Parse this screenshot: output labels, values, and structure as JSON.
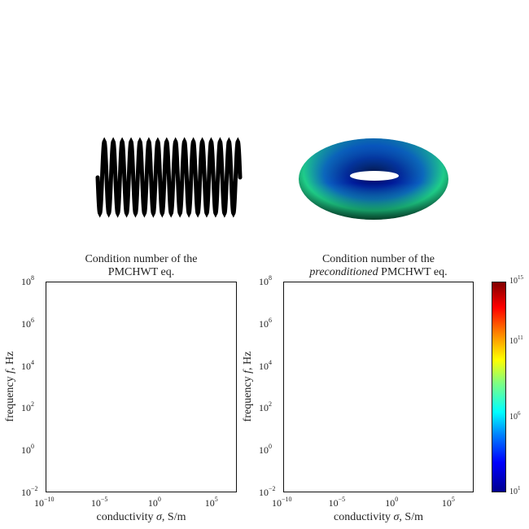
{
  "figures": {
    "helix": {
      "label": "helix-coil-geometry",
      "turns": 16,
      "color": "#000000"
    },
    "torus": {
      "label": "torus-geometry",
      "colors": [
        "#000066",
        "#0033cc",
        "#20c080",
        "#30e090"
      ]
    }
  },
  "plots": [
    {
      "title_line1": "Condition number of the",
      "title_line2_italic": "",
      "title_line2": "PMCHWT eq.",
      "xlabel": "conductivity σ, S/m",
      "ylabel": "frequency f, Hz"
    },
    {
      "title_line1": "Condition number of the",
      "title_line2_italic": "preconditioned",
      "title_line2": " PMCHWT eq.",
      "xlabel": "conductivity σ, S/m",
      "ylabel": "frequency f, Hz"
    }
  ],
  "xticks": [
    {
      "base": "10",
      "exp": "−10"
    },
    {
      "base": "10",
      "exp": "−5"
    },
    {
      "base": "10",
      "exp": "0"
    },
    {
      "base": "10",
      "exp": "5"
    }
  ],
  "yticks": [
    {
      "base": "10",
      "exp": "8"
    },
    {
      "base": "10",
      "exp": "6"
    },
    {
      "base": "10",
      "exp": "4"
    },
    {
      "base": "10",
      "exp": "2"
    },
    {
      "base": "10",
      "exp": "0"
    },
    {
      "base": "10",
      "exp": "−2"
    }
  ],
  "colorbar": {
    "ticks": [
      {
        "base": "10",
        "exp": "15"
      },
      {
        "base": "10",
        "exp": "11"
      },
      {
        "base": "10",
        "exp": "6"
      },
      {
        "base": "10",
        "exp": "1"
      }
    ],
    "colormap": "jet"
  },
  "chart_data": [
    {
      "type": "heatmap",
      "title": "Condition number of the PMCHWT eq.",
      "xlabel": "conductivity σ, S/m",
      "ylabel": "frequency f, Hz",
      "xscale": "log",
      "yscale": "log",
      "xlim": [
        1e-10,
        100000000.0
      ],
      "ylim": [
        0.01,
        100000000.0
      ],
      "xticks": [
        "1e-10",
        "1e-5",
        "1e0",
        "1e5"
      ],
      "yticks": [
        "1e-2",
        "1e0",
        "1e2",
        "1e4",
        "1e6",
        "1e8"
      ],
      "values": [],
      "grid": false
    },
    {
      "type": "heatmap",
      "title": "Condition number of the preconditioned PMCHWT eq.",
      "xlabel": "conductivity σ, S/m",
      "ylabel": "frequency f, Hz",
      "xscale": "log",
      "yscale": "log",
      "xlim": [
        1e-10,
        100000000.0
      ],
      "ylim": [
        0.01,
        100000000.0
      ],
      "xticks": [
        "1e-10",
        "1e-5",
        "1e0",
        "1e5"
      ],
      "yticks": [
        "1e-2",
        "1e0",
        "1e2",
        "1e4",
        "1e6",
        "1e8"
      ],
      "values": [],
      "grid": false,
      "colorbar": {
        "scale": "log",
        "range": [
          10.0,
          1000000000000000.0
        ],
        "ticks": [
          "1e1",
          "1e6",
          "1e11",
          "1e15"
        ],
        "colormap": "jet"
      }
    }
  ]
}
